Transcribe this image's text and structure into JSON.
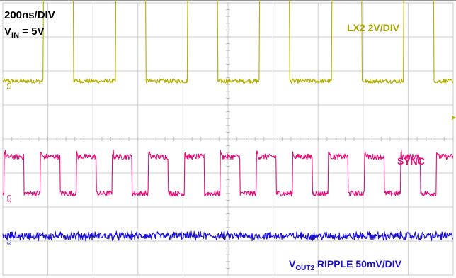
{
  "chart_data": {
    "type": "line",
    "title": "",
    "xlabel": "",
    "ylabel": "",
    "grid": true,
    "grid_divisions": {
      "x": 10,
      "y": 8
    },
    "time_per_div_ns": 200,
    "annotations": {
      "timebase": "200ns/DIV",
      "vin_main": "V",
      "vin_sub": "IN",
      "vin_value": " = 5V"
    },
    "series": [
      {
        "name": "LX2 2V/DIV",
        "channel_marker": "C1",
        "color": "#b5b000",
        "kind": "square",
        "period_ns": 320,
        "duty": 0.42,
        "first_rise_ns": 180,
        "high_div": 4.15,
        "low_div": 1.7,
        "noise_div": 0.06
      },
      {
        "name": "SYNC",
        "channel_marker": "C3",
        "color": "#e0107a",
        "kind": "square",
        "period_ns": 160,
        "duty": 0.55,
        "first_rise_ns": 6,
        "high_div": -0.52,
        "low_div": -1.6,
        "noise_div": 0.08
      },
      {
        "name_main": "V",
        "name_sub": "OUT2",
        "name_rest": " RIPPLE 50mV/DIV",
        "channel_marker": "C3",
        "color": "#1a10d8",
        "kind": "noise",
        "level_div": -2.85,
        "noise_div": 0.1
      }
    ]
  }
}
